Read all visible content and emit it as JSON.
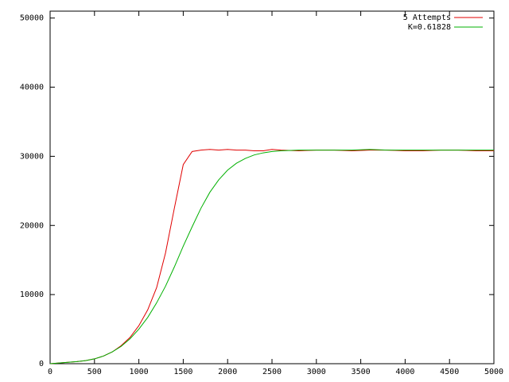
{
  "chart_data": {
    "type": "line",
    "x": [
      0,
      100,
      200,
      300,
      400,
      500,
      600,
      700,
      800,
      900,
      1000,
      1100,
      1200,
      1300,
      1400,
      1500,
      1600,
      1700,
      1800,
      1900,
      2000,
      2100,
      2200,
      2300,
      2400,
      2500,
      2600,
      2800,
      3000,
      3200,
      3400,
      3600,
      3800,
      4000,
      4200,
      4400,
      4600,
      4800,
      5000
    ],
    "series": [
      {
        "name": "5 Attempts",
        "color": "#e00000",
        "values": [
          0,
          100,
          200,
          300,
          450,
          700,
          1100,
          1700,
          2600,
          3800,
          5500,
          7800,
          11000,
          16000,
          22500,
          28800,
          30700,
          30900,
          31000,
          30900,
          31000,
          30900,
          30900,
          30800,
          30800,
          31000,
          30900,
          30800,
          30900,
          30900,
          30800,
          30900,
          30900,
          30800,
          30800,
          30900,
          30900,
          30800,
          30800
        ]
      },
      {
        "name": "K=0.61828",
        "color": "#00b000",
        "values": [
          0,
          100,
          200,
          300,
          450,
          700,
          1100,
          1700,
          2500,
          3600,
          5000,
          6700,
          8800,
          11200,
          14000,
          17000,
          19800,
          22500,
          24800,
          26600,
          28000,
          29000,
          29700,
          30200,
          30500,
          30700,
          30800,
          30900,
          30900,
          30900,
          30900,
          31000,
          30900,
          30900,
          30900,
          30900,
          30900,
          30900,
          30900
        ]
      }
    ],
    "xlim": [
      0,
      5000
    ],
    "xticks": [
      0,
      500,
      1000,
      1500,
      2000,
      2500,
      3000,
      3500,
      4000,
      4500,
      5000
    ],
    "ylim": [
      0,
      51000
    ],
    "yticks": [
      0,
      10000,
      20000,
      30000,
      40000,
      50000
    ],
    "grid": false,
    "legend": "top-right"
  }
}
